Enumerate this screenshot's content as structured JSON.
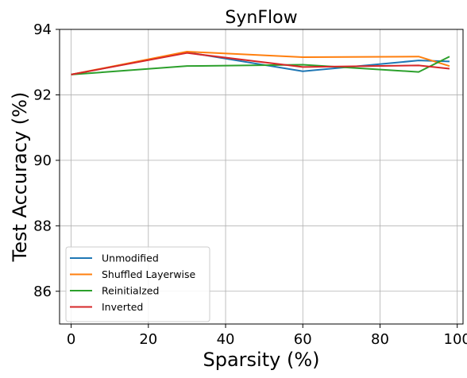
{
  "chart_data": {
    "type": "line",
    "title": "SynFlow",
    "xlabel": "Sparsity (%)",
    "ylabel": "Test Accuracy (%)",
    "xlim": [
      -3,
      101.5
    ],
    "ylim": [
      85,
      94
    ],
    "xticks": [
      0,
      20,
      40,
      60,
      80,
      100
    ],
    "yticks": [
      86,
      88,
      90,
      92,
      94
    ],
    "grid": true,
    "legend_position": "lower-left",
    "series": [
      {
        "name": "Unmodified",
        "color": "#1f77b4",
        "x": [
          0,
          30,
          60,
          90,
          98
        ],
        "y": [
          92.62,
          93.3,
          92.72,
          93.05,
          93.02
        ]
      },
      {
        "name": "Shuffled Layerwise",
        "color": "#ff7f0e",
        "x": [
          0,
          30,
          60,
          90,
          98
        ],
        "y": [
          92.62,
          93.32,
          93.15,
          93.17,
          92.88
        ]
      },
      {
        "name": "Reinitialzed",
        "color": "#2ca02c",
        "x": [
          0,
          30,
          60,
          90,
          98
        ],
        "y": [
          92.62,
          92.88,
          92.92,
          92.7,
          93.17
        ]
      },
      {
        "name": "Inverted",
        "color": "#d62728",
        "x": [
          0,
          30,
          60,
          90,
          98
        ],
        "y": [
          92.62,
          93.28,
          92.85,
          92.9,
          92.8
        ]
      }
    ]
  }
}
